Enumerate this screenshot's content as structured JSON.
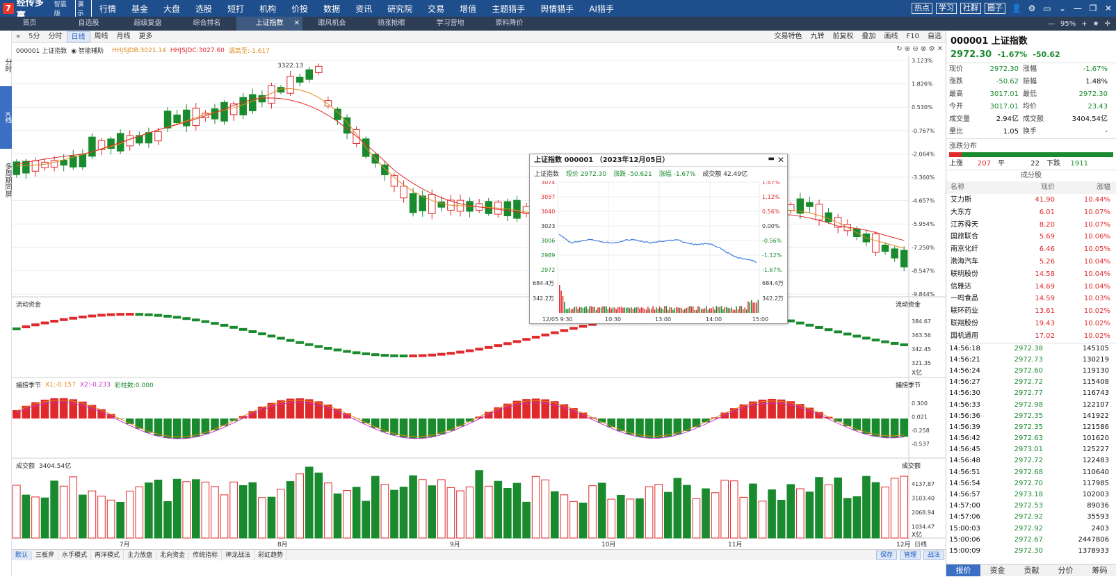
{
  "app": {
    "name": "经传多赢",
    "edition": "智赢版",
    "demo": "演示",
    "menu": [
      "行情",
      "基金",
      "大盘",
      "选股",
      "短打",
      "机构",
      "价投",
      "数据",
      "资讯",
      "研究院",
      "交易",
      "增值",
      "主题猎手",
      "舆情猎手",
      "AI猎手"
    ],
    "right_buttons": [
      "热点",
      "学习",
      "社群",
      "圈子"
    ]
  },
  "tabs": {
    "items": [
      "首页",
      "自选股",
      "超级复盘",
      "综合排名",
      "上证指数",
      "跟风机会",
      "领涨抢眼",
      "学习营地",
      "原料降价"
    ],
    "active_index": 4,
    "zoom": "95%"
  },
  "left_tabs": [
    "分时",
    "K线",
    "多周期同屏"
  ],
  "toolbar": {
    "left": [
      "5分",
      "分时",
      "日线",
      "周线",
      "月线",
      "更多"
    ],
    "active": "日线",
    "right": [
      "交易特色",
      "九转",
      "前复权",
      "叠加",
      "画线",
      "F10",
      "自选"
    ]
  },
  "main_panel": {
    "code": "000001 上证指数",
    "assist": "智能辅助",
    "indicators": [
      {
        "label": "HHJSJDB:3021.14",
        "color": "#e08a1e"
      },
      {
        "label": "HHJSJDC:3027.60",
        "color": "#e0292b"
      },
      {
        "label": "调高至:-1.617",
        "color": "#e08a1e"
      }
    ],
    "peak_label": "3322.13",
    "y_axis": [
      "3.123%",
      "1.826%",
      "0.530%",
      "-0.767%",
      "-2.064%",
      "-3.360%",
      "-4.657%",
      "-5.954%",
      "-7.250%",
      "-8.547%",
      "-9.844%"
    ]
  },
  "flow_panel": {
    "title": "流动资金",
    "right_title": "流动资金",
    "y_axis": [
      "384.67",
      "363.56",
      "342.45",
      "321.35"
    ],
    "unit": "X亿"
  },
  "season_panel": {
    "title": "捕捞季节",
    "x1": "X1:-0.157",
    "x2": "X2:-0.233",
    "col": "彩柱数:0.000",
    "right_title": "捕捞季节",
    "y_axis": [
      "0.300",
      "0.021",
      "-0.258",
      "-0.537"
    ]
  },
  "volume_panel": {
    "title": "成交额",
    "value": "3404.54亿",
    "right_title": "成交额",
    "y_axis": [
      "4137.87",
      "3103.40",
      "2068.94",
      "1034.47"
    ],
    "unit": "X亿"
  },
  "x_axis": [
    "7月",
    "8月",
    "9月",
    "10月",
    "11月",
    "12月"
  ],
  "x_axis_right": "日线",
  "bottom_tabs": [
    "默认",
    "三板斧",
    "水手模式",
    "再洋模式",
    "主力放盘",
    "北向资金",
    "传统指标",
    "神龙战法",
    "彩虹趋势"
  ],
  "bottom_right": [
    "保存",
    "管理",
    "战法"
  ],
  "popup": {
    "title": "上证指数 000001 （2023年12月05日）",
    "info": [
      "上证指数",
      "现价 2972.30",
      "涨跌 -50.621",
      "涨幅 -1.67%",
      "成交额 42.49亿"
    ],
    "left_axis": [
      "3074",
      "3057",
      "3040",
      "3023",
      "3006",
      "2989",
      "2972"
    ],
    "right_axis": [
      "1.67%",
      "1.12%",
      "0.56%",
      "0.00%",
      "-0.56%",
      "-1.12%",
      "-1.67%"
    ],
    "vol_axis": [
      "684.4万",
      "342.2万"
    ],
    "time_axis": [
      "12/05 9:30",
      "10:30",
      "13:00",
      "14:00",
      "15:00"
    ]
  },
  "quote": {
    "code": "000001 上证指数",
    "price": "2972.30",
    "change_pct": "-1.67%",
    "change": "-50.62",
    "rows": [
      {
        "k": "现价",
        "v": "2972.30",
        "k2": "涨幅",
        "v2": "-1.67%"
      },
      {
        "k": "涨跌",
        "v": "-50.62",
        "k2": "振幅",
        "v2": "1.48%"
      },
      {
        "k": "最高",
        "v": "3017.01",
        "k2": "最低",
        "v2": "2972.30"
      },
      {
        "k": "今开",
        "v": "3017.01",
        "k2": "均价",
        "v2": "23.43"
      },
      {
        "k": "成交量",
        "v": "2.94亿",
        "k2": "成交额",
        "v2": "3404.54亿"
      },
      {
        "k": "量比",
        "v": "1.05",
        "k2": "换手",
        "v2": "-"
      }
    ],
    "dist_title": "涨跌分布",
    "up_label": "上涨",
    "up": "207",
    "flat_label": "平",
    "flat": "22",
    "down_label": "下跌",
    "down": "1911",
    "comp_title": "成分股",
    "comp_headers": [
      "名称",
      "现价",
      "涨幅"
    ],
    "components": [
      {
        "n": "艾力斯",
        "p": "41.90",
        "c": "10.44%"
      },
      {
        "n": "大东方",
        "p": "6.01",
        "c": "10.07%"
      },
      {
        "n": "江苏舜天",
        "p": "8.20",
        "c": "10.07%"
      },
      {
        "n": "国旅联合",
        "p": "5.69",
        "c": "10.06%"
      },
      {
        "n": "南京化纤",
        "p": "6.46",
        "c": "10.05%"
      },
      {
        "n": "渤海汽车",
        "p": "5.26",
        "c": "10.04%"
      },
      {
        "n": "联明股份",
        "p": "14.58",
        "c": "10.04%"
      },
      {
        "n": "信雅达",
        "p": "14.69",
        "c": "10.04%"
      },
      {
        "n": "一鸣食品",
        "p": "14.59",
        "c": "10.03%"
      },
      {
        "n": "联环药业",
        "p": "13.61",
        "c": "10.02%"
      },
      {
        "n": "联翔股份",
        "p": "19.43",
        "c": "10.02%"
      },
      {
        "n": "国机通用",
        "p": "17.02",
        "c": "10.02%"
      }
    ],
    "ticks": [
      {
        "t": "14:56:18",
        "p": "2972.38",
        "v": "145105"
      },
      {
        "t": "14:56:21",
        "p": "2972.73",
        "v": "130219"
      },
      {
        "t": "14:56:24",
        "p": "2972.60",
        "v": "119130"
      },
      {
        "t": "14:56:27",
        "p": "2972.72",
        "v": "115408"
      },
      {
        "t": "14:56:30",
        "p": "2972.77",
        "v": "116743"
      },
      {
        "t": "14:56:33",
        "p": "2972.98",
        "v": "122107"
      },
      {
        "t": "14:56:36",
        "p": "2972.35",
        "v": "141922"
      },
      {
        "t": "14:56:39",
        "p": "2972.35",
        "v": "121586"
      },
      {
        "t": "14:56:42",
        "p": "2972.63",
        "v": "101620"
      },
      {
        "t": "14:56:45",
        "p": "2973.01",
        "v": "125227"
      },
      {
        "t": "14:56:48",
        "p": "2972.72",
        "v": "122483"
      },
      {
        "t": "14:56:51",
        "p": "2972.68",
        "v": "110640"
      },
      {
        "t": "14:56:54",
        "p": "2972.70",
        "v": "117985"
      },
      {
        "t": "14:56:57",
        "p": "2973.18",
        "v": "102003"
      },
      {
        "t": "14:57:00",
        "p": "2972.53",
        "v": "89036"
      },
      {
        "t": "14:57:06",
        "p": "2972.92",
        "v": "35593"
      },
      {
        "t": "15:00:03",
        "p": "2972.92",
        "v": "2403"
      },
      {
        "t": "15:00:06",
        "p": "2972.67",
        "v": "2447806"
      },
      {
        "t": "15:00:09",
        "p": "2972.30",
        "v": "1378933"
      }
    ],
    "bottom_tabs": [
      "报价",
      "资金",
      "贡献",
      "分价",
      "筹码"
    ]
  },
  "colors": {
    "up": "#e0292b",
    "down": "#1a8a2e",
    "ma1": "#e08a1e",
    "ma2": "#e0292b",
    "line": "#3b7be0"
  }
}
